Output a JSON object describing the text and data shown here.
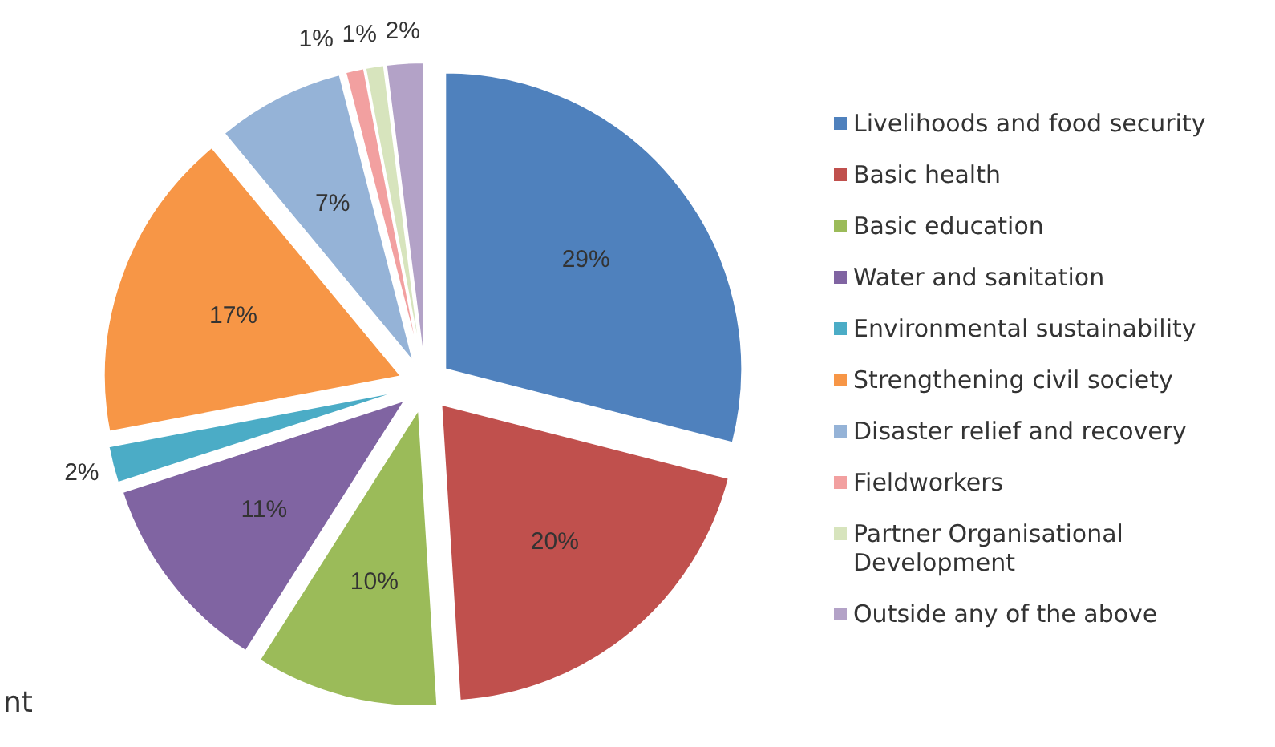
{
  "chart_data": {
    "type": "pie",
    "categories": [
      "Livelihoods and food security",
      "Basic health",
      "Basic education",
      "Water and sanitation",
      "Environmental sustainability",
      "Strengthening civil society",
      "Disaster relief and recovery",
      "Fieldworkers",
      "Partner Organisational Development",
      "Outside any of the above"
    ],
    "values": [
      29,
      20,
      10,
      11,
      2,
      17,
      7,
      1,
      1,
      2
    ],
    "value_labels": [
      "29%",
      "20%",
      "10%",
      "11%",
      "2%",
      "17%",
      "7%",
      "1%",
      "1%",
      "2%"
    ],
    "colors": [
      "#4f81bd",
      "#c0504d",
      "#9bbb59",
      "#8064a2",
      "#4bacc6",
      "#f79646",
      "#95b3d7",
      "#f2a0a0",
      "#d7e4bd",
      "#b3a2c7"
    ],
    "legend": "right",
    "annotations": [
      "nt"
    ]
  }
}
